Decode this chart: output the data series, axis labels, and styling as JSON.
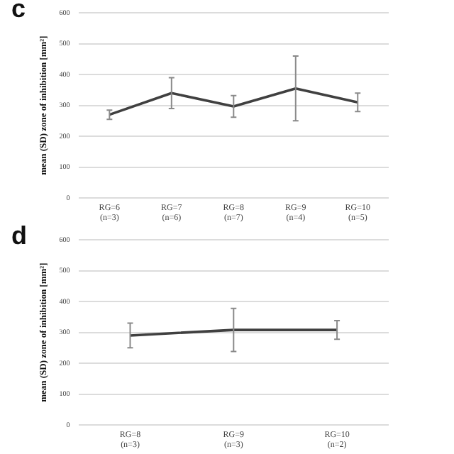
{
  "chart_data": [
    {
      "type": "line",
      "title": "c",
      "ylabel": "mean (SD) zone of inhibition [mm²]",
      "categories": [
        "RG=6 (n=3)",
        "RG=7 (n=6)",
        "RG=8 (n=7)",
        "RG=9 (n=4)",
        "RG=10 (n=5)"
      ],
      "series": [
        {
          "color": "#404040",
          "values": [
            270,
            340,
            297,
            355,
            310
          ],
          "errors": [
            15,
            50,
            35,
            105,
            30
          ]
        }
      ],
      "ylim": [
        0,
        600
      ],
      "yticks": [
        0,
        100,
        200,
        300,
        400,
        500,
        600
      ],
      "grid": "y",
      "legend": false,
      "marker": "none"
    },
    {
      "type": "line",
      "title": "d",
      "ylabel": "mean (SD) zone of inhibition [mm²]",
      "categories": [
        "RG=8 (n=3)",
        "RG=9 (n=3)",
        "RG=10 (n=2)"
      ],
      "series": [
        {
          "color": "#404040",
          "values": [
            290,
            308,
            308
          ],
          "errors": [
            40,
            70,
            30
          ]
        }
      ],
      "ylim": [
        0,
        600
      ],
      "yticks": [
        0,
        100,
        200,
        300,
        400,
        500,
        600
      ],
      "grid": "y",
      "legend": false,
      "marker": "none"
    }
  ]
}
